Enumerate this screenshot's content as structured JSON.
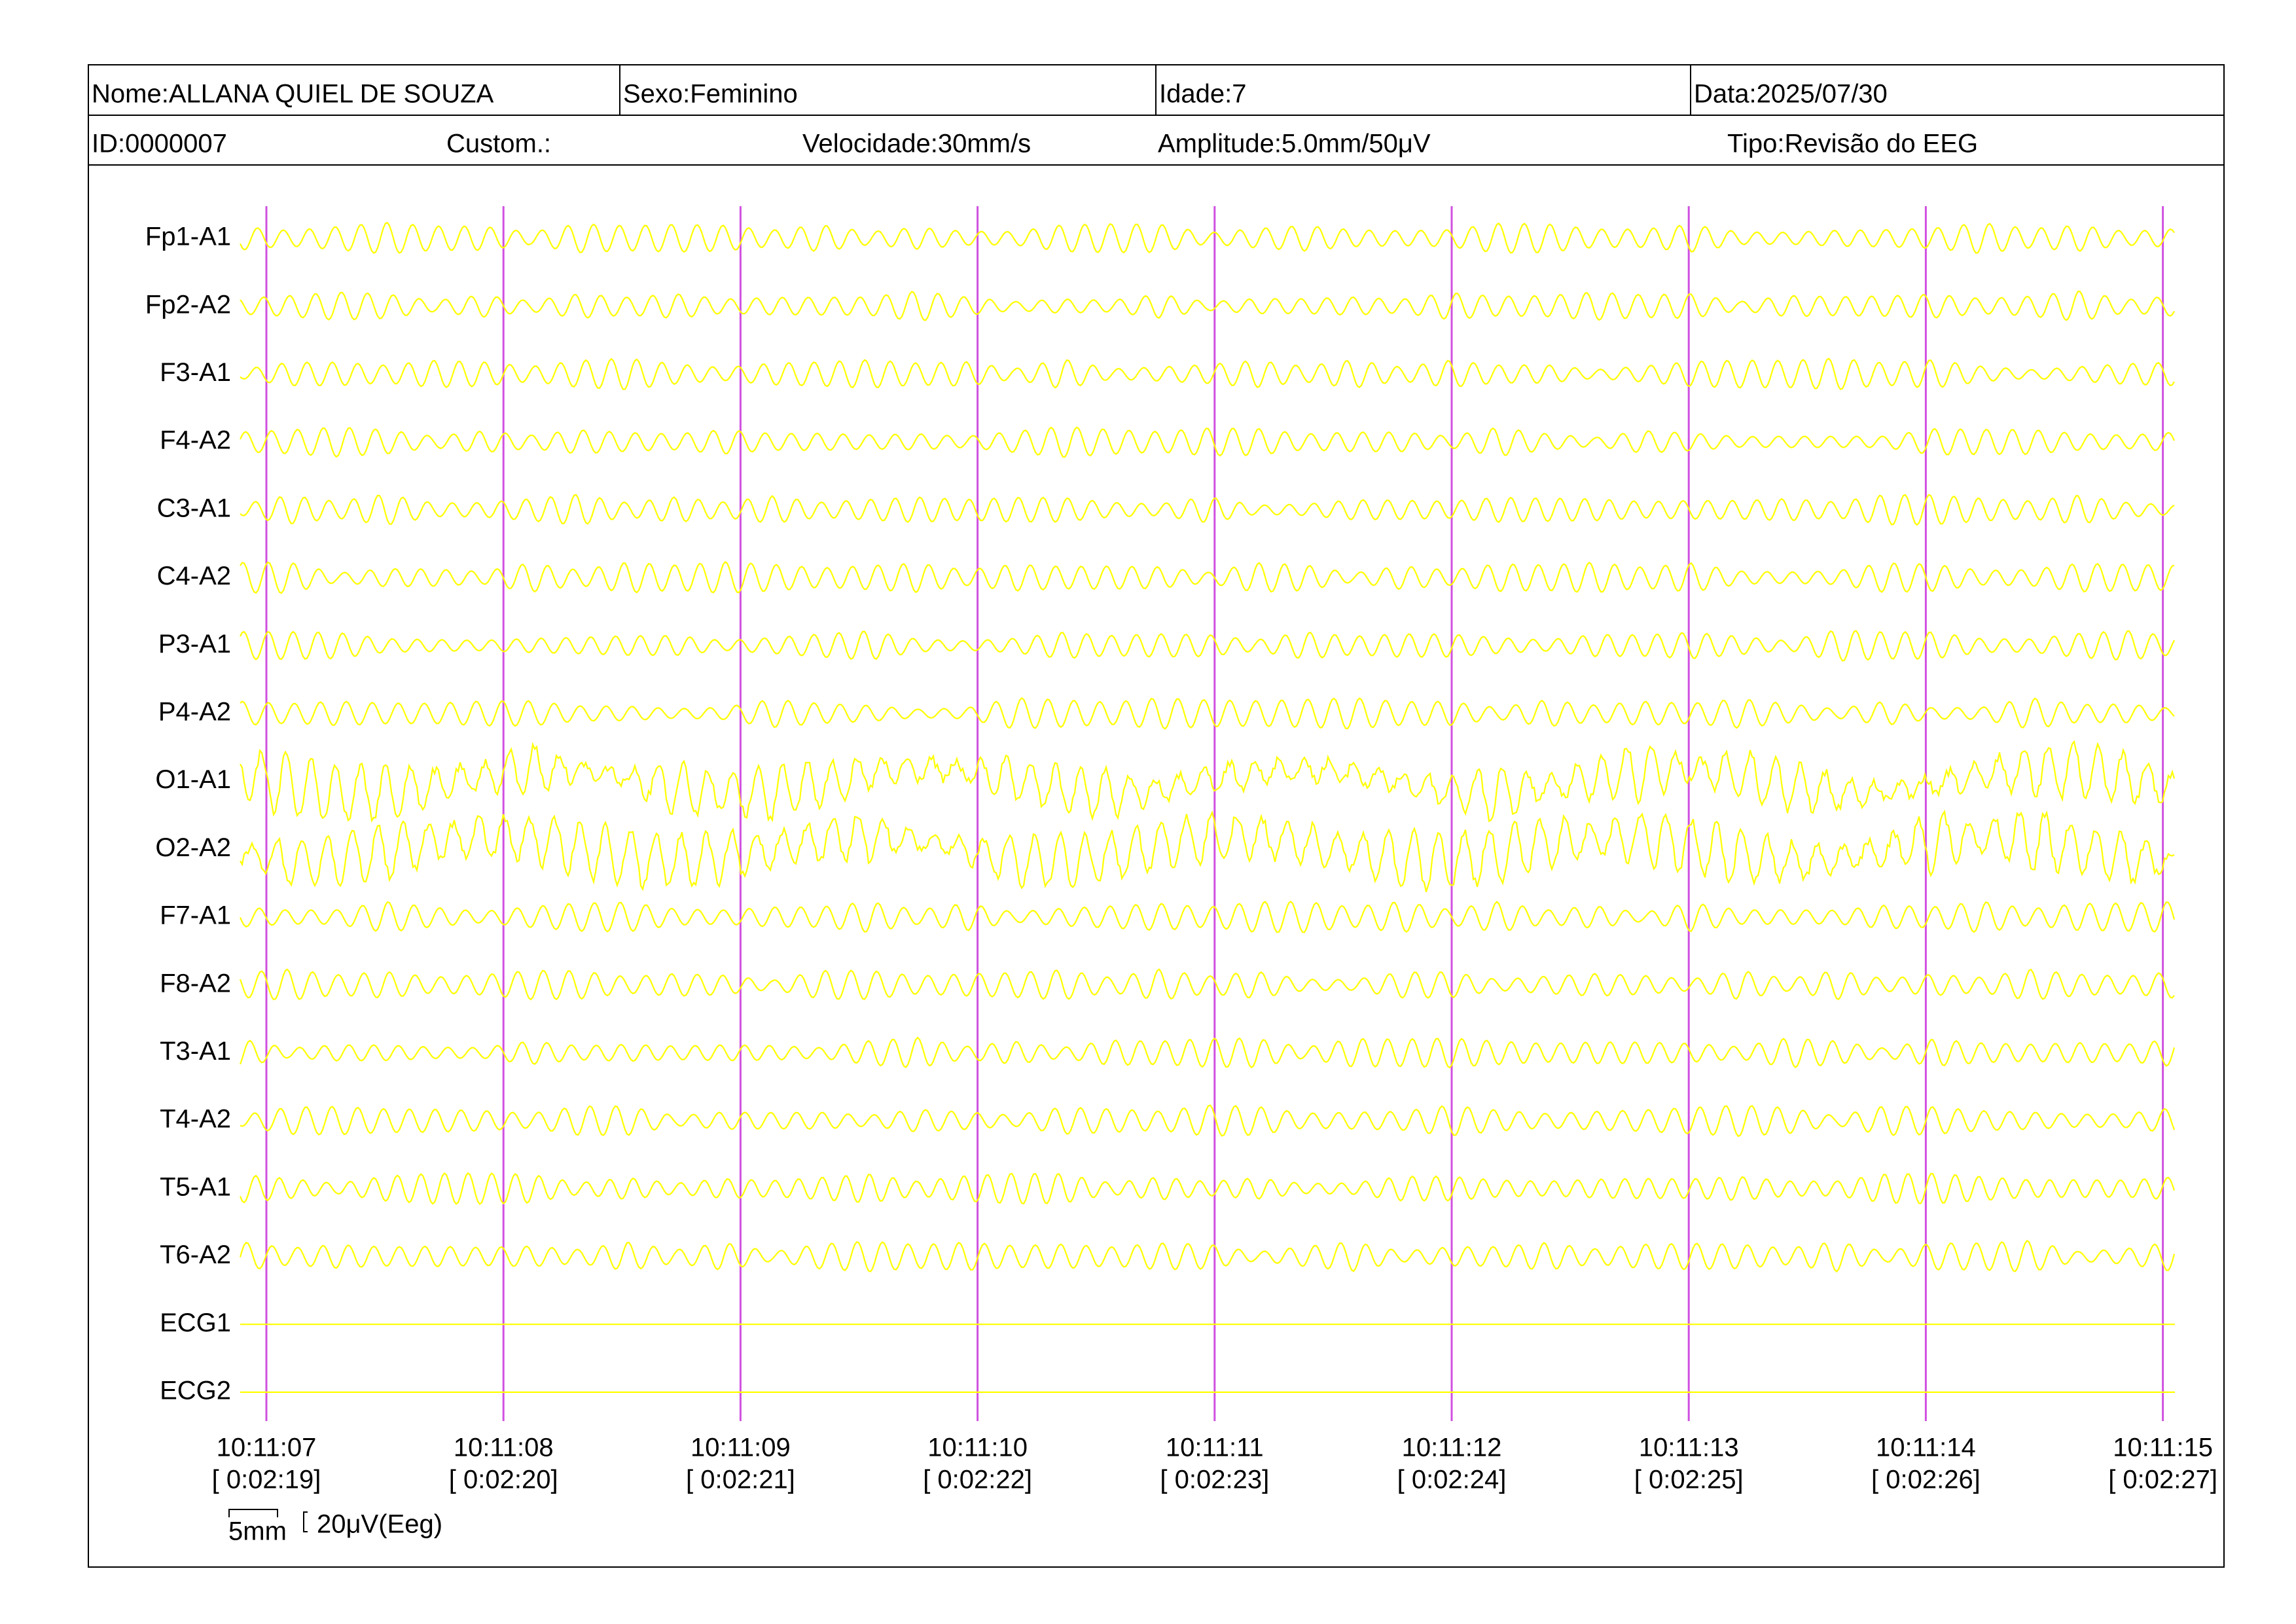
{
  "header": {
    "row1": [
      "Nome:ALLANA QUIEL DE SOUZA",
      "Sexo:Feminino",
      "Idade:7",
      "Data:2025/07/30"
    ],
    "row2": [
      "ID:0000007",
      "Custom.:",
      "Velocidade:30mm/s",
      "Amplitude:5.0mm/50μV",
      "Tipo:Revisão do EEG"
    ]
  },
  "channels": [
    "Fp1-A1",
    "Fp2-A2",
    "F3-A1",
    "F4-A2",
    "C3-A1",
    "C4-A2",
    "P3-A1",
    "P4-A2",
    "O1-A1",
    "O2-A2",
    "F7-A1",
    "F8-A2",
    "T3-A1",
    "T4-A2",
    "T5-A1",
    "T6-A2",
    "ECG1",
    "ECG2"
  ],
  "time_marks": [
    {
      "time": "10:11:07",
      "elapsed": "[ 0:02:19]"
    },
    {
      "time": "10:11:08",
      "elapsed": "[ 0:02:20]"
    },
    {
      "time": "10:11:09",
      "elapsed": "[ 0:02:21]"
    },
    {
      "time": "10:11:10",
      "elapsed": "[ 0:02:22]"
    },
    {
      "time": "10:11:11",
      "elapsed": "[ 0:02:23]"
    },
    {
      "time": "10:11:12",
      "elapsed": "[ 0:02:24]"
    },
    {
      "time": "10:11:13",
      "elapsed": "[ 0:02:25]"
    },
    {
      "time": "10:11:14",
      "elapsed": "[ 0:02:26]"
    },
    {
      "time": "10:11:15",
      "elapsed": "[ 0:02:27]"
    }
  ],
  "scale": {
    "time": "5mm",
    "amplitude": "20μV(Eeg)"
  }
}
